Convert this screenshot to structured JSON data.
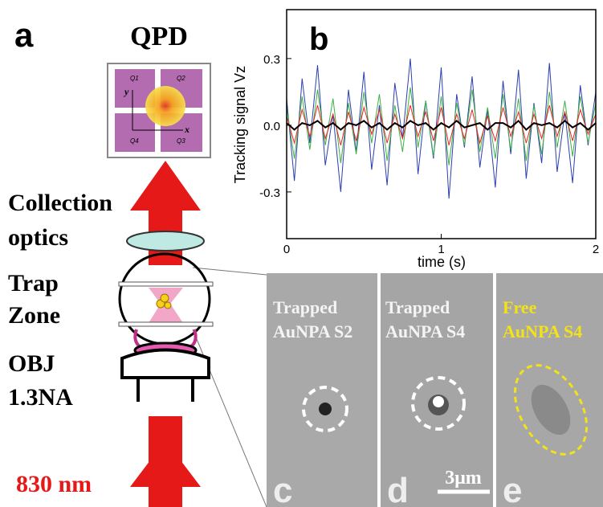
{
  "panels": {
    "a": "a",
    "b": "b"
  },
  "diagram": {
    "detector": "QPD",
    "quadrants": [
      "Q1",
      "Q2",
      "Q4",
      "Q3"
    ],
    "axis_x": "x",
    "axis_y": "y",
    "collection": [
      "Collection",
      "optics"
    ],
    "trap": [
      "Trap",
      "Zone"
    ],
    "objective": [
      "OBJ",
      "1.3NA"
    ],
    "wavelength": "830 nm"
  },
  "images": [
    {
      "label": [
        "Trapped",
        "AuNPA S2"
      ],
      "panel": "c"
    },
    {
      "label": [
        "Trapped",
        "AuNPA S4"
      ],
      "panel": "d"
    },
    {
      "label": [
        "Free",
        "AuNPA S4"
      ],
      "panel": "e"
    }
  ],
  "scale_bar": "3μm",
  "chart_data": {
    "type": "line",
    "xlabel": "time (s)",
    "ylabel": "Tracking signal Vz",
    "x": [
      0,
      0.05,
      0.1,
      0.15,
      0.2,
      0.25,
      0.3,
      0.35,
      0.4,
      0.45,
      0.5,
      0.55,
      0.6,
      0.65,
      0.7,
      0.75,
      0.8,
      0.85,
      0.9,
      0.95,
      1,
      1.05,
      1.1,
      1.15,
      1.2,
      1.25,
      1.3,
      1.35,
      1.4,
      1.45,
      1.5,
      1.55,
      1.6,
      1.65,
      1.7,
      1.75,
      1.8,
      1.85,
      1.9,
      1.95,
      2
    ],
    "series": [
      {
        "color": "#2b3fb0",
        "values": [
          0.12,
          -0.25,
          0.21,
          -0.08,
          0.27,
          -0.18,
          0.05,
          -0.3,
          0.16,
          -0.12,
          0.24,
          -0.2,
          0.09,
          -0.27,
          0.19,
          -0.06,
          0.3,
          -0.22,
          0.11,
          -0.15,
          0.26,
          -0.33,
          0.14,
          -0.1,
          0.22,
          -0.19,
          0.07,
          -0.28,
          0.2,
          -0.13,
          0.25,
          -0.24,
          0.1,
          -0.17,
          0.28,
          -0.21,
          0.06,
          -0.26,
          0.18,
          -0.09,
          0.15
        ]
      },
      {
        "color": "#3cb043",
        "values": [
          0.08,
          -0.15,
          0.13,
          -0.11,
          0.16,
          -0.09,
          0.12,
          -0.17,
          0.1,
          -0.13,
          0.15,
          -0.08,
          0.14,
          -0.16,
          0.09,
          -0.12,
          0.17,
          -0.1,
          0.11,
          -0.14,
          0.13,
          -0.18,
          0.1,
          -0.09,
          0.16,
          -0.12,
          0.08,
          -0.15,
          0.14,
          -0.11,
          0.12,
          -0.16,
          0.09,
          -0.13,
          0.15,
          -0.1,
          0.11,
          -0.14,
          0.13,
          -0.08,
          0.1
        ]
      },
      {
        "color": "#ee2222",
        "values": [
          0.04,
          -0.08,
          0.07,
          -0.05,
          0.09,
          -0.06,
          0.05,
          -0.09,
          0.06,
          -0.07,
          0.08,
          -0.04,
          0.07,
          -0.08,
          0.05,
          -0.06,
          0.09,
          -0.05,
          0.06,
          -0.07,
          0.08,
          -0.09,
          0.05,
          -0.06,
          0.07,
          -0.08,
          0.04,
          -0.07,
          0.08,
          -0.05,
          0.06,
          -0.08,
          0.05,
          -0.06,
          0.09,
          -0.05,
          0.06,
          -0.07,
          0.07,
          -0.04,
          0.05
        ]
      },
      {
        "color": "#000000",
        "values": [
          0.01,
          -0.02,
          0.01,
          0,
          0.02,
          -0.01,
          0.01,
          -0.02,
          0.01,
          0,
          0.02,
          -0.01,
          0.01,
          -0.02,
          0.01,
          -0.01,
          0.02,
          0,
          0.01,
          -0.02,
          0.01,
          -0.01,
          0.02,
          -0.01,
          0,
          0.01,
          -0.02,
          0.01,
          0.01,
          -0.01,
          0.02,
          -0.02,
          0.01,
          0,
          0.01,
          -0.01,
          0.02,
          -0.01,
          0.01,
          -0.02,
          0.01
        ]
      }
    ],
    "xlim": [
      0,
      2
    ],
    "xticks": [
      0,
      1,
      2
    ],
    "ylim": [
      -0.51,
      0.52
    ],
    "yticks": [
      -0.3,
      {
        "value": 0,
        "label": "0.0"
      },
      0.3
    ]
  }
}
